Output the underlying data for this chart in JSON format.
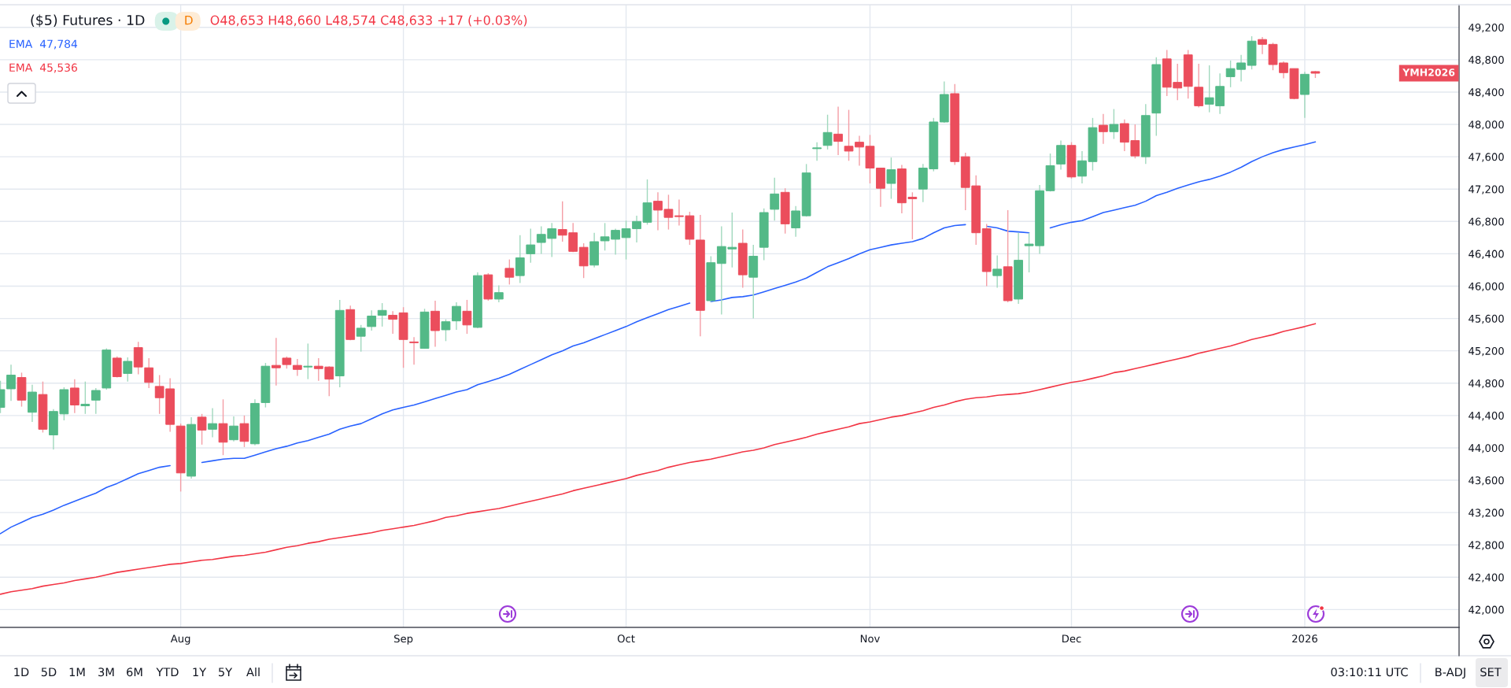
{
  "chart_data": {
    "type": "candlestick",
    "title": "($5) Futures · 1D",
    "subtitle": "O48,653 H48,660 L48,574 C48,633 +17 (+0.03%)",
    "categories": [
      null,
      null,
      null,
      null,
      null,
      null,
      null,
      null,
      null,
      null,
      null,
      null,
      null,
      null,
      null,
      null,
      null,
      "Aug",
      null,
      null,
      null,
      null,
      null,
      null,
      null,
      null,
      null,
      null,
      null,
      null,
      null,
      null,
      null,
      null,
      null,
      null,
      null,
      null,
      "Sep",
      null,
      null,
      null,
      null,
      null,
      null,
      null,
      null,
      null,
      null,
      null,
      null,
      null,
      null,
      null,
      null,
      null,
      null,
      null,
      null,
      "Oct",
      null,
      null,
      null,
      null,
      null,
      null,
      null,
      null,
      null,
      null,
      null,
      null,
      null,
      null,
      null,
      null,
      null,
      null,
      null,
      null,
      null,
      null,
      "Nov",
      null,
      null,
      null,
      null,
      null,
      null,
      null,
      null,
      null,
      null,
      null,
      null,
      null,
      null,
      null,
      null,
      null,
      null,
      "Dec",
      null,
      null,
      null,
      null,
      null,
      null,
      null,
      null,
      null,
      null,
      null,
      null,
      null,
      null,
      null,
      null,
      null,
      null,
      null,
      null,
      null,
      "2026",
      null
    ],
    "ohlc": [
      [
        44500,
        44830,
        44430,
        44720
      ],
      [
        44730,
        45030,
        44580,
        44900
      ],
      [
        44870,
        44930,
        44510,
        44590
      ],
      [
        44440,
        44780,
        44320,
        44690
      ],
      [
        44660,
        44820,
        44190,
        44230
      ],
      [
        44160,
        44480,
        43980,
        44450
      ],
      [
        44420,
        44750,
        44340,
        44720
      ],
      [
        44740,
        44850,
        44430,
        44530
      ],
      [
        44520,
        44820,
        44420,
        44540
      ],
      [
        44590,
        44740,
        44420,
        44710
      ],
      [
        44740,
        45230,
        44720,
        45210
      ],
      [
        45110,
        45130,
        44870,
        44880
      ],
      [
        44920,
        45120,
        44820,
        45070
      ],
      [
        45240,
        45310,
        44910,
        45000
      ],
      [
        44990,
        45110,
        44740,
        44810
      ],
      [
        44760,
        44900,
        44420,
        44620
      ],
      [
        44730,
        44860,
        44200,
        44290
      ],
      [
        44270,
        44300,
        43460,
        43690
      ],
      [
        43650,
        44380,
        43620,
        44290
      ],
      [
        44380,
        44420,
        44040,
        44220
      ],
      [
        44230,
        44490,
        44130,
        44300
      ],
      [
        44300,
        44600,
        43910,
        44070
      ],
      [
        44100,
        44390,
        44080,
        44270
      ],
      [
        44300,
        44400,
        44010,
        44080
      ],
      [
        44050,
        44600,
        44030,
        44550
      ],
      [
        44560,
        45050,
        44500,
        45010
      ],
      [
        45020,
        45360,
        44770,
        44990
      ],
      [
        45110,
        45130,
        44980,
        45030
      ],
      [
        45020,
        45100,
        44890,
        44970
      ],
      [
        45000,
        45290,
        44850,
        45010
      ],
      [
        45010,
        45110,
        44830,
        44980
      ],
      [
        45000,
        45010,
        44640,
        44850
      ],
      [
        44890,
        45830,
        44750,
        45700
      ],
      [
        45710,
        45760,
        45330,
        45340
      ],
      [
        45380,
        45520,
        45190,
        45480
      ],
      [
        45500,
        45700,
        45450,
        45630
      ],
      [
        45640,
        45790,
        45500,
        45700
      ],
      [
        45640,
        45690,
        45410,
        45590
      ],
      [
        45670,
        45740,
        44990,
        45340
      ],
      [
        45310,
        45370,
        45030,
        45300
      ],
      [
        45230,
        45720,
        45230,
        45680
      ],
      [
        45690,
        45820,
        45250,
        45450
      ],
      [
        45460,
        45590,
        45320,
        45560
      ],
      [
        45570,
        45800,
        45460,
        45750
      ],
      [
        45690,
        45830,
        45410,
        45520
      ],
      [
        45490,
        46170,
        45480,
        46130
      ],
      [
        46140,
        46160,
        45820,
        45840
      ],
      [
        45840,
        46010,
        45800,
        45920
      ],
      [
        46220,
        46330,
        46020,
        46110
      ],
      [
        46130,
        46630,
        46040,
        46350
      ],
      [
        46400,
        46710,
        46290,
        46510
      ],
      [
        46540,
        46740,
        46400,
        46640
      ],
      [
        46590,
        46780,
        46360,
        46710
      ],
      [
        46700,
        47050,
        46550,
        46630
      ],
      [
        46660,
        46780,
        46420,
        46430
      ],
      [
        46480,
        46530,
        46100,
        46250
      ],
      [
        46260,
        46660,
        46230,
        46550
      ],
      [
        46560,
        46780,
        46440,
        46610
      ],
      [
        46580,
        46710,
        46390,
        46690
      ],
      [
        46600,
        46810,
        46330,
        46710
      ],
      [
        46710,
        46870,
        46540,
        46800
      ],
      [
        46790,
        47320,
        46760,
        47030
      ],
      [
        47050,
        47160,
        46690,
        46940
      ],
      [
        46950,
        47130,
        46700,
        46850
      ],
      [
        46870,
        47070,
        46750,
        46860
      ],
      [
        46870,
        46920,
        46510,
        46580
      ],
      [
        46570,
        46880,
        45380,
        45700
      ],
      [
        45820,
        46370,
        45810,
        46290
      ],
      [
        46280,
        46740,
        45650,
        46490
      ],
      [
        46460,
        46910,
        46230,
        46480
      ],
      [
        46530,
        46700,
        45980,
        46140
      ],
      [
        46110,
        46510,
        45600,
        46370
      ],
      [
        46480,
        46960,
        46320,
        46910
      ],
      [
        46950,
        47340,
        46810,
        47140
      ],
      [
        47160,
        47210,
        46650,
        46770
      ],
      [
        46720,
        46990,
        46610,
        46930
      ],
      [
        46870,
        47510,
        46860,
        47400
      ],
      [
        47700,
        47780,
        47550,
        47710
      ],
      [
        47740,
        48120,
        47690,
        47900
      ],
      [
        47880,
        48220,
        47620,
        47790
      ],
      [
        47730,
        48180,
        47550,
        47670
      ],
      [
        47780,
        47860,
        47490,
        47720
      ],
      [
        47730,
        47870,
        47270,
        47460
      ],
      [
        47460,
        47460,
        46980,
        47210
      ],
      [
        47270,
        47590,
        47080,
        47440
      ],
      [
        47450,
        47500,
        46900,
        47030
      ],
      [
        47100,
        47160,
        46580,
        47080
      ],
      [
        47200,
        47510,
        47040,
        47460
      ],
      [
        47450,
        48080,
        47420,
        48030
      ],
      [
        48030,
        48530,
        48020,
        48370
      ],
      [
        48380,
        48500,
        47500,
        47540
      ],
      [
        47600,
        47650,
        46940,
        47220
      ],
      [
        47240,
        47370,
        46510,
        46660
      ],
      [
        46710,
        46770,
        46000,
        46180
      ],
      [
        46130,
        46380,
        45980,
        46210
      ],
      [
        46240,
        46940,
        45800,
        45820
      ],
      [
        45840,
        46660,
        45780,
        46320
      ],
      [
        46500,
        46660,
        46170,
        46520
      ],
      [
        46500,
        47250,
        46400,
        47180
      ],
      [
        47180,
        47640,
        47170,
        47490
      ],
      [
        47510,
        47800,
        47440,
        47740
      ],
      [
        47740,
        47780,
        47330,
        47350
      ],
      [
        47360,
        47670,
        47270,
        47550
      ],
      [
        47540,
        48080,
        47430,
        47960
      ],
      [
        47990,
        48130,
        47760,
        47910
      ],
      [
        47910,
        48190,
        47820,
        48000
      ],
      [
        48010,
        48060,
        47670,
        47780
      ],
      [
        47800,
        48000,
        47580,
        47610
      ],
      [
        47600,
        48250,
        47510,
        48110
      ],
      [
        48140,
        48830,
        47860,
        48740
      ],
      [
        48810,
        48920,
        48350,
        48460
      ],
      [
        48520,
        48750,
        48300,
        48450
      ],
      [
        48860,
        48920,
        48320,
        48470
      ],
      [
        48460,
        48750,
        48210,
        48230
      ],
      [
        48250,
        48730,
        48150,
        48330
      ],
      [
        48230,
        48630,
        48130,
        48470
      ],
      [
        48590,
        48790,
        48460,
        48690
      ],
      [
        48680,
        48860,
        48530,
        48760
      ],
      [
        48730,
        49090,
        48680,
        49030
      ],
      [
        49050,
        49080,
        48870,
        48990
      ],
      [
        48990,
        49010,
        48670,
        48740
      ],
      [
        48760,
        48780,
        48570,
        48640
      ],
      [
        48690,
        48690,
        48310,
        48320
      ],
      [
        48370,
        48650,
        48080,
        48620
      ],
      [
        48653,
        48660,
        48574,
        48633
      ]
    ],
    "colors": [
      "#53b987",
      "#53b987",
      "#eb4d5c",
      "#53b987",
      "#eb4d5c",
      "#53b987",
      "#53b987",
      "#eb4d5c",
      "#53b987",
      "#53b987",
      "#53b987",
      "#eb4d5c",
      "#53b987",
      "#eb4d5c",
      "#eb4d5c",
      "#eb4d5c",
      "#eb4d5c",
      "#eb4d5c",
      "#53b987",
      "#eb4d5c",
      "#53b987",
      "#eb4d5c",
      "#53b987",
      "#eb4d5c",
      "#53b987",
      "#53b987",
      "#eb4d5c",
      "#eb4d5c",
      "#eb4d5c",
      "#53b987",
      "#eb4d5c",
      "#eb4d5c",
      "#53b987",
      "#eb4d5c",
      "#53b987",
      "#53b987",
      "#53b987",
      "#eb4d5c",
      "#eb4d5c",
      "#eb4d5c",
      "#53b987",
      "#eb4d5c",
      "#53b987",
      "#53b987",
      "#eb4d5c",
      "#53b987",
      "#eb4d5c",
      "#53b987",
      "#eb4d5c",
      "#53b987",
      "#53b987",
      "#53b987",
      "#53b987",
      "#eb4d5c",
      "#eb4d5c",
      "#eb4d5c",
      "#53b987",
      "#53b987",
      "#53b987",
      "#53b987",
      "#53b987",
      "#53b987",
      "#eb4d5c",
      "#eb4d5c",
      "#eb4d5c",
      "#eb4d5c",
      "#eb4d5c",
      "#53b987",
      "#53b987",
      "#53b987",
      "#eb4d5c",
      "#53b987",
      "#53b987",
      "#53b987",
      "#eb4d5c",
      "#53b987",
      "#53b987",
      "#53b987",
      "#53b987",
      "#eb4d5c",
      "#eb4d5c",
      "#eb4d5c",
      "#eb4d5c",
      "#eb4d5c",
      "#53b987",
      "#eb4d5c",
      "#eb4d5c",
      "#53b987",
      "#53b987",
      "#53b987",
      "#eb4d5c",
      "#eb4d5c",
      "#eb4d5c",
      "#eb4d5c",
      "#53b987",
      "#eb4d5c",
      "#53b987",
      "#53b987",
      "#53b987",
      "#53b987",
      "#53b987",
      "#eb4d5c",
      "#53b987",
      "#53b987",
      "#eb4d5c",
      "#53b987",
      "#eb4d5c",
      "#eb4d5c",
      "#53b987",
      "#53b987",
      "#eb4d5c",
      "#eb4d5c",
      "#eb4d5c",
      "#eb4d5c",
      "#53b987",
      "#53b987",
      "#53b987",
      "#53b987",
      "#53b987",
      "#eb4d5c",
      "#eb4d5c",
      "#eb4d5c",
      "#eb4d5c",
      "#53b987",
      "#eb4d5c"
    ],
    "series": [
      {
        "name": "EMA",
        "type": "line",
        "color": "#2962ff",
        "values": [
          42940,
          43020,
          43080,
          43140,
          43180,
          43230,
          43290,
          43340,
          43390,
          43440,
          43510,
          43560,
          43620,
          43680,
          43720,
          43760,
          43780,
          null,
          null,
          43820,
          43840,
          43860,
          43870,
          43870,
          43910,
          43950,
          43990,
          44020,
          44060,
          44090,
          44130,
          44170,
          44230,
          44270,
          44300,
          44360,
          44420,
          44470,
          44500,
          44530,
          44570,
          44610,
          44650,
          44690,
          44720,
          44780,
          44820,
          44860,
          44910,
          44970,
          45030,
          45090,
          45150,
          45200,
          45260,
          45300,
          45350,
          45400,
          45450,
          45500,
          45560,
          45610,
          45660,
          45710,
          45750,
          45790,
          null,
          45810,
          45830,
          45860,
          45870,
          45890,
          45930,
          45970,
          46010,
          46050,
          46100,
          46170,
          46240,
          46290,
          46340,
          46400,
          46450,
          46480,
          46510,
          46530,
          46550,
          46590,
          46660,
          46720,
          46750,
          46760,
          null,
          46740,
          46720,
          46680,
          46670,
          46660,
          null,
          46720,
          46760,
          46790,
          46810,
          46860,
          46910,
          46940,
          46970,
          47000,
          47050,
          47120,
          47160,
          47210,
          47250,
          47290,
          47320,
          47360,
          47410,
          47470,
          47540,
          47600,
          47650,
          47690,
          47720,
          47750,
          47784
        ]
      },
      {
        "name": "EMA",
        "type": "line",
        "color": "#f23645",
        "values": [
          42190,
          42220,
          42240,
          42260,
          42290,
          42310,
          42330,
          42360,
          42380,
          42400,
          42430,
          42460,
          42480,
          42500,
          42520,
          42540,
          42560,
          42570,
          42590,
          42610,
          42620,
          42640,
          42660,
          42670,
          42690,
          42710,
          42740,
          42770,
          42790,
          42820,
          42840,
          42870,
          42890,
          42910,
          42930,
          42950,
          42980,
          43000,
          43020,
          43040,
          43070,
          43100,
          43140,
          43160,
          43190,
          43210,
          43230,
          43250,
          43280,
          43310,
          43340,
          43370,
          43400,
          43430,
          43470,
          43500,
          43530,
          43560,
          43590,
          43620,
          43660,
          43690,
          43720,
          43760,
          43790,
          43820,
          43840,
          43860,
          43890,
          43920,
          43950,
          43970,
          44000,
          44040,
          44070,
          44100,
          44130,
          44170,
          44200,
          44230,
          44260,
          44300,
          44320,
          44350,
          44380,
          44400,
          44430,
          44460,
          44500,
          44530,
          44570,
          44600,
          44620,
          44630,
          44650,
          44660,
          44670,
          44690,
          44720,
          44750,
          44780,
          44810,
          44830,
          44860,
          44890,
          44930,
          44950,
          44980,
          45010,
          45040,
          45070,
          45100,
          45130,
          45170,
          45200,
          45230,
          45260,
          45300,
          45340,
          45370,
          45400,
          45440,
          45470,
          45500,
          45536
        ]
      }
    ],
    "ylim": [
      41780,
      49480
    ],
    "yticks": [
      {
        "value": 42000,
        "label": "42,000"
      },
      {
        "value": 42400,
        "label": "42,400"
      },
      {
        "value": 42800,
        "label": "42,800"
      },
      {
        "value": 43200,
        "label": "43,200"
      },
      {
        "value": 43600,
        "label": "43,600"
      },
      {
        "value": 44000,
        "label": "44,000"
      },
      {
        "value": 44400,
        "label": "44,400"
      },
      {
        "value": 44800,
        "label": "44,800"
      },
      {
        "value": 45200,
        "label": "45,200"
      },
      {
        "value": 45600,
        "label": "45,600"
      },
      {
        "value": 46000,
        "label": "46,000"
      },
      {
        "value": 46400,
        "label": "46,400"
      },
      {
        "value": 46800,
        "label": "46,800"
      },
      {
        "value": 47200,
        "label": "47,200"
      },
      {
        "value": 47600,
        "label": "47,600"
      },
      {
        "value": 48000,
        "label": "48,000"
      },
      {
        "value": 48400,
        "label": "48,400"
      },
      {
        "value": 48800,
        "label": "48,800"
      },
      {
        "value": 49200,
        "label": "49,200"
      }
    ],
    "grid": true,
    "legend": "top left",
    "annotations": [
      "47,784",
      "45,536",
      "D",
      "YMH2026",
      "1D",
      "5D",
      "1M",
      "3M",
      "6M",
      "YTD",
      "1Y",
      "5Y",
      "All",
      "03:10:11 UTC",
      "B-ADJ",
      "SET"
    ]
  }
}
